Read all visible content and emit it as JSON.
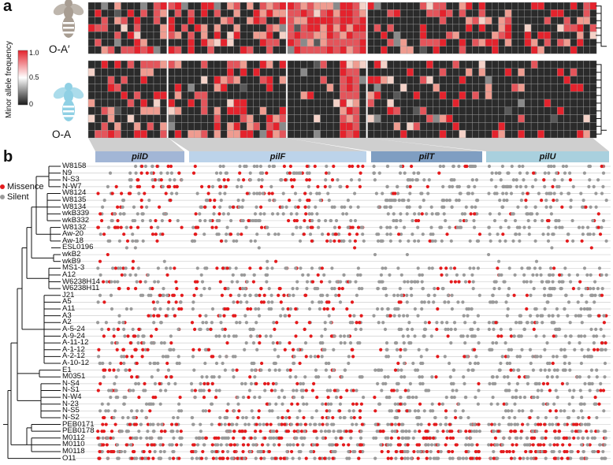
{
  "panel_a": {
    "label": "a",
    "strains": [
      "O-A′",
      "O-A"
    ],
    "colorbar": {
      "title": "Minor allele frequency",
      "ticks": [
        "1.0",
        "0.5",
        "0"
      ],
      "colors": {
        "high": "#e4232d",
        "mid": "#ffffff",
        "low": "#1a1a1a"
      }
    }
  },
  "panel_b": {
    "label": "b",
    "legend": [
      {
        "label": "Missence",
        "color": "#e41a1c"
      },
      {
        "label": "Silent",
        "color": "#9a9a9a"
      }
    ],
    "genes": [
      {
        "name": "pilD",
        "color": "#a2b6d6"
      },
      {
        "name": "pilF",
        "color": "#bcd3ea"
      },
      {
        "name": "pilT",
        "color": "#7f9ec2"
      },
      {
        "name": "pilU",
        "color": "#a9d0de"
      }
    ],
    "strains": [
      "W8158",
      "N9",
      "N-S3",
      "N-W7",
      "W8124",
      "W8135",
      "W8134",
      "wkB339",
      "wkB332",
      "W8132",
      "Aw-20",
      "Aw-18",
      "ESL0196",
      "wkB2",
      "wkB9",
      "MS1-3",
      "A12",
      "W6238H14",
      "W6238H11",
      "J21",
      "A5",
      "A11",
      "A3",
      "A2",
      "A-5-24",
      "A-9-24",
      "A-11-12",
      "A-1-12",
      "A-2-12",
      "A-10-12",
      "E1",
      "M0351",
      "N-S4",
      "N-S1",
      "N-W4",
      "N-23",
      "N-S5",
      "N-S2",
      "PEB0171",
      "PEB0178",
      "M0112",
      "M0110",
      "M0118",
      "O11"
    ]
  }
}
